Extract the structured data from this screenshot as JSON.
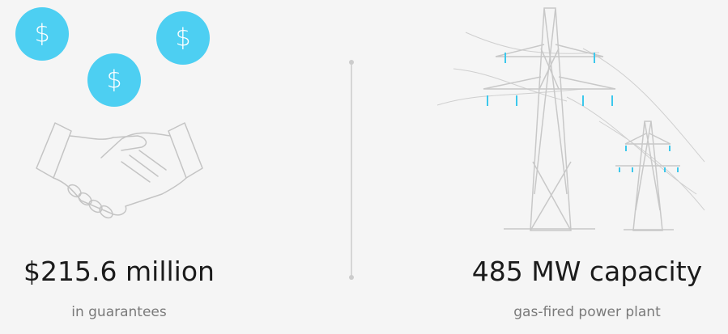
{
  "icon_symbol": "$",
  "stats": [
    {
      "value": "$215.6 million",
      "caption": "in guarantees"
    },
    {
      "value": "485 MW capacity",
      "caption": "gas-fired power plant"
    }
  ]
}
